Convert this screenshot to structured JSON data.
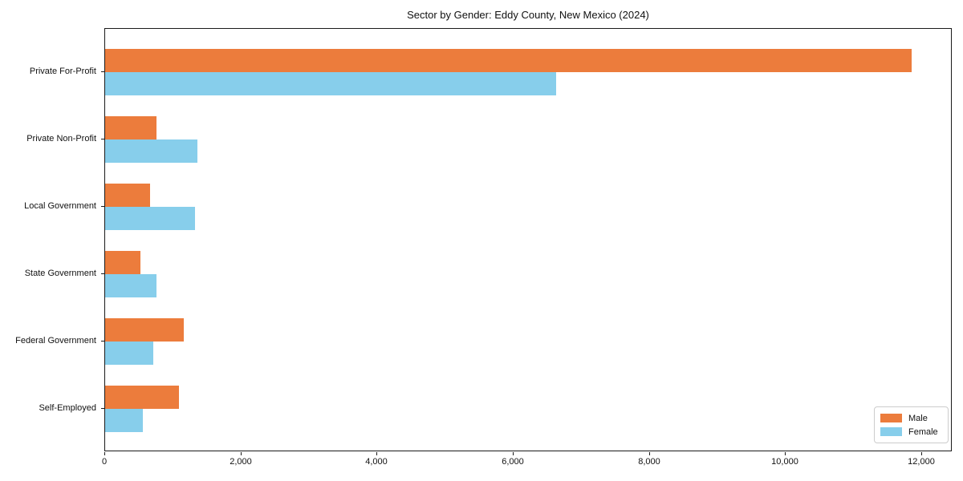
{
  "chart_data": {
    "type": "bar",
    "orientation": "horizontal",
    "title": "Sector by Gender: Eddy County, New Mexico (2024)",
    "categories": [
      "Private For-Profit",
      "Private Non-Profit",
      "Local Government",
      "State Government",
      "Federal Government",
      "Self-Employed"
    ],
    "series": [
      {
        "name": "Male",
        "color": "#EC7C3C",
        "values": [
          11850,
          750,
          660,
          520,
          1150,
          1085
        ]
      },
      {
        "name": "Female",
        "color": "#87CEEB",
        "values": [
          6620,
          1350,
          1320,
          760,
          710,
          555
        ]
      }
    ],
    "xlabel": "",
    "ylabel": "",
    "xlim": [
      0,
      12450
    ],
    "x_ticks": [
      0,
      2000,
      4000,
      6000,
      8000,
      10000,
      12000
    ],
    "x_tick_labels": [
      "0",
      "2,000",
      "4,000",
      "6,000",
      "8,000",
      "10,000",
      "12,000"
    ],
    "grid": false,
    "legend": {
      "position": "lower right",
      "entries": [
        "Male",
        "Female"
      ]
    }
  },
  "colors": {
    "background": "#FFFFFF",
    "spine": "#1A1A1A",
    "text": "#111111",
    "legend_border": "#CCCCCC",
    "male": "#EC7C3C",
    "female": "#87CEEB"
  }
}
